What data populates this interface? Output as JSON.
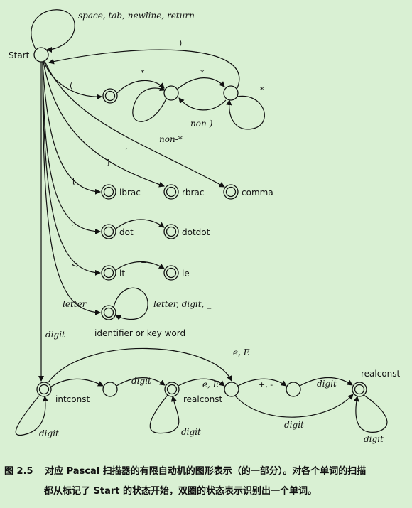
{
  "diagram": {
    "start_label": "Start",
    "whitespace_label": "space, tab, newline, return",
    "edges": {
      "close_paren": ")",
      "open_paren": "(",
      "star1": "*",
      "star2": "*",
      "star3": "*",
      "non_close": "non-)",
      "non_star": "non-*",
      "comma_sym": ",",
      "rbrac_sym": "]",
      "lbrac_sym": "[",
      "dot_sym": ".",
      "dot2_sym": ".",
      "lt_sym": "<",
      "eq_sym": "=",
      "letter": "letter",
      "letter_digit": "letter, digit, _",
      "digit_start": "digit",
      "digit_loop1": "digit",
      "digit_a": "digit",
      "digit_loop2": "digit",
      "eE_top": "e, E",
      "eE_mid": "e, E",
      "plus_minus": "+, -",
      "digit_b": "digit",
      "digit_c": "digit",
      "digit_loop3": "digit"
    },
    "states": {
      "lbrac": "lbrac",
      "rbrac": "rbrac",
      "comma": "comma",
      "dot": "dot",
      "dotdot": "dotdot",
      "lt": "lt",
      "le": "le",
      "identifier": "identifier or key word",
      "intconst": "intconst",
      "realconst1": "realconst",
      "realconst2": "realconst"
    }
  },
  "caption": {
    "figure_number": "图 2.5",
    "line1": "对应 Pascal 扫描器的有限自动机的图形表示（的一部分）。对各个单词的扫描",
    "line2": "都从标记了 Start 的状态开始，双圈的状态表示识别出一个单词。"
  }
}
